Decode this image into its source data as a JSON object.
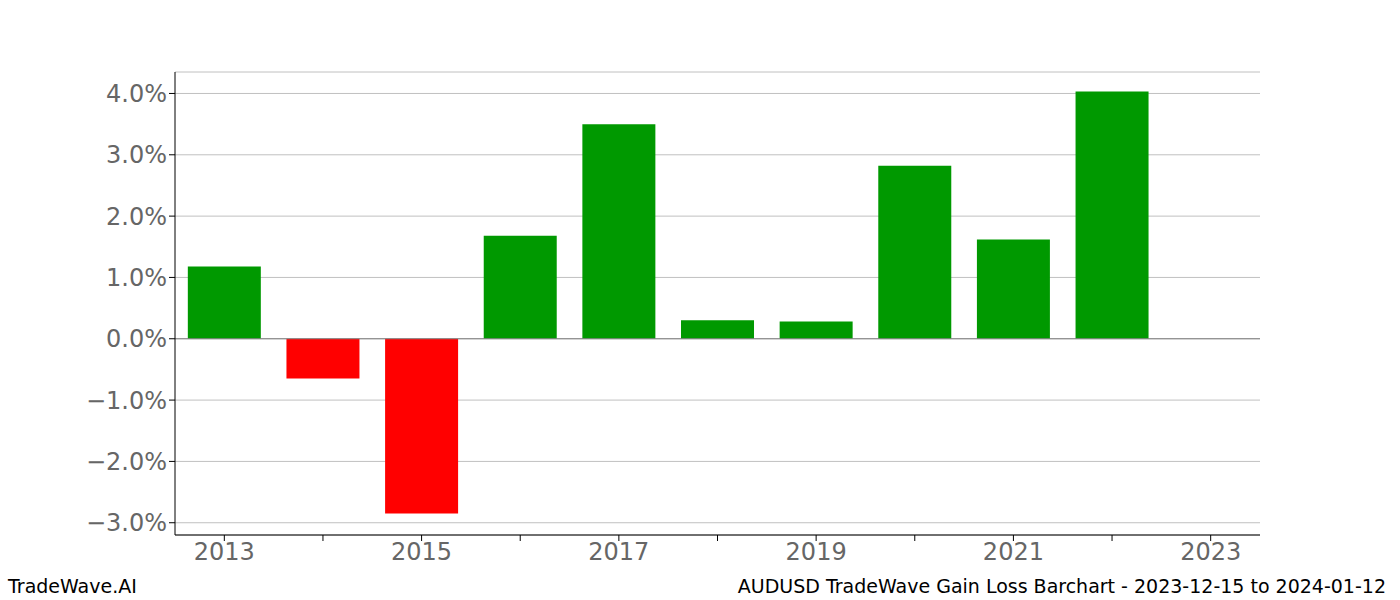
{
  "chart_data": {
    "type": "bar",
    "title": "AUDUSD TradeWave Gain Loss Barchart - 2023-12-15 to 2024-01-12",
    "source": "TradeWave.AI",
    "categories": [
      "2013",
      null,
      "2015",
      null,
      "2017",
      null,
      "2019",
      null,
      "2021",
      null,
      "2023"
    ],
    "values": [
      1.18,
      -0.65,
      -2.85,
      1.68,
      3.5,
      0.3,
      0.28,
      2.82,
      1.62,
      4.03,
      null
    ],
    "colors": [
      "#009900",
      "#ff0000",
      "#ff0000",
      "#009900",
      "#009900",
      "#009900",
      "#009900",
      "#009900",
      "#009900",
      "#009900",
      "#009900"
    ],
    "ylim": [
      -3.2,
      4.35
    ],
    "yticks": [
      {
        "value": -3,
        "label": "−3.0%"
      },
      {
        "value": -2,
        "label": "−2.0%"
      },
      {
        "value": -1,
        "label": "−1.0%"
      },
      {
        "value": 0,
        "label": "0.0%"
      },
      {
        "value": 1,
        "label": "1.0%"
      },
      {
        "value": 2,
        "label": "2.0%"
      },
      {
        "value": 3,
        "label": "3.0%"
      },
      {
        "value": 4,
        "label": "4.0%"
      }
    ],
    "grid": true
  }
}
